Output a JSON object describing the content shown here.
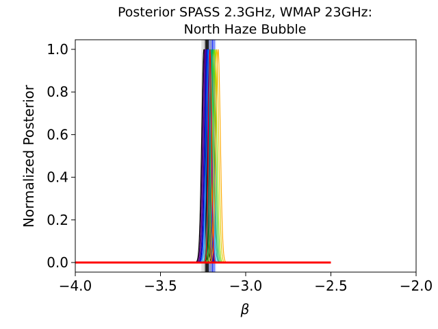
{
  "chart_data": {
    "type": "line",
    "title_lines": [
      "Posterior SPASS 2.3GHz, WMAP 23GHz:",
      "North Haze Bubble"
    ],
    "xlabel": "β",
    "ylabel": "Normalized Posterior",
    "xlim": [
      -4.0,
      -2.0
    ],
    "ylim": [
      -0.045,
      1.045
    ],
    "x_ticks": [
      -4.0,
      -3.5,
      -3.0,
      -2.5,
      -2.0
    ],
    "x_tick_labels": [
      "−4.0",
      "−3.5",
      "−3.0",
      "−2.5",
      "−2.0"
    ],
    "y_ticks": [
      0.0,
      0.2,
      0.4,
      0.6,
      0.8,
      1.0
    ],
    "y_tick_labels": [
      "0.0",
      "0.2",
      "0.4",
      "0.6",
      "0.8",
      "1.0"
    ],
    "grid": false,
    "legend": "none",
    "shaded_bands": [
      {
        "x0": -3.26,
        "x1": -3.185,
        "color": "#bbbbbb",
        "opacity": 0.45
      },
      {
        "x0": -3.245,
        "x1": -3.2,
        "color": "#888888",
        "opacity": 0.5
      },
      {
        "x0": -3.225,
        "x1": -3.175,
        "color": "#4466ff",
        "opacity": 0.35
      }
    ],
    "vertical_lines": [
      {
        "x": -3.232,
        "color": "#000000",
        "width": 2
      },
      {
        "x": -3.222,
        "color": "#000000",
        "width": 2
      },
      {
        "x": -3.195,
        "color": "#2233ff",
        "width": 1.5
      },
      {
        "x": -3.185,
        "color": "#6677ff",
        "width": 1.5
      }
    ],
    "series": [
      {
        "center": -3.245,
        "width": 0.013,
        "color": "#000000"
      },
      {
        "center": -3.24,
        "width": 0.013,
        "color": "#3d005a"
      },
      {
        "center": -3.235,
        "width": 0.013,
        "color": "#6a00a0"
      },
      {
        "center": -3.23,
        "width": 0.013,
        "color": "#2f1a8f"
      },
      {
        "center": -3.226,
        "width": 0.013,
        "color": "#0000c8"
      },
      {
        "center": -3.222,
        "width": 0.013,
        "color": "#0044ff"
      },
      {
        "center": -3.215,
        "width": 0.013,
        "color": "#0088ee"
      },
      {
        "center": -3.205,
        "width": 0.013,
        "color": "#00aaaa"
      },
      {
        "center": -3.198,
        "width": 0.013,
        "color": "#00aa55"
      },
      {
        "center": -3.19,
        "width": 0.013,
        "color": "#33cc33"
      },
      {
        "center": -3.182,
        "width": 0.013,
        "color": "#88dd00"
      },
      {
        "center": -3.172,
        "width": 0.013,
        "color": "#ddcc00"
      },
      {
        "center": -3.162,
        "width": 0.013,
        "color": "#ffaa00"
      },
      {
        "center": -3.21,
        "width": 0.009,
        "color": "#ff0000"
      }
    ],
    "baseline_segment": {
      "x0": -4.0,
      "x1": -2.5,
      "y": 0.0,
      "color": "#ff0000",
      "width": 3
    }
  }
}
